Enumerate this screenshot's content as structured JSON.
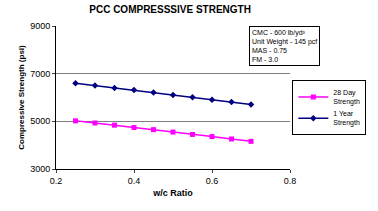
{
  "chart_data": {
    "type": "line",
    "title": "PCC COMPRESSSIVE STRENGTH",
    "x_label": "w/c Ratio",
    "y_label": "Compressive Strength (psi)",
    "x": [
      0.25,
      0.3,
      0.35,
      0.4,
      0.45,
      0.5,
      0.55,
      0.6,
      0.65,
      0.7
    ],
    "series": [
      {
        "name": "28 Day Strength",
        "color": "#ff00ff",
        "marker": "square",
        "values": [
          5020,
          4930,
          4840,
          4740,
          4650,
          4550,
          4450,
          4360,
          4260,
          4160
        ]
      },
      {
        "name": "1 Year Strength",
        "color": "#000080",
        "marker": "diamond",
        "values": [
          6600,
          6500,
          6400,
          6310,
          6210,
          6110,
          6010,
          5910,
          5810,
          5710
        ]
      }
    ],
    "xlim": [
      0.2,
      0.8
    ],
    "xticks": [
      0.2,
      0.4,
      0.6,
      0.8
    ],
    "ylim": [
      3000,
      9000
    ],
    "yticks": [
      3000,
      5000,
      7000,
      9000
    ],
    "grid": true,
    "legend": "right",
    "annotations": [
      "CMC - 600 lb/yd³",
      "Unit Weight - 145 pcf",
      "MAS - 0.75",
      "FM - 3.0"
    ]
  }
}
